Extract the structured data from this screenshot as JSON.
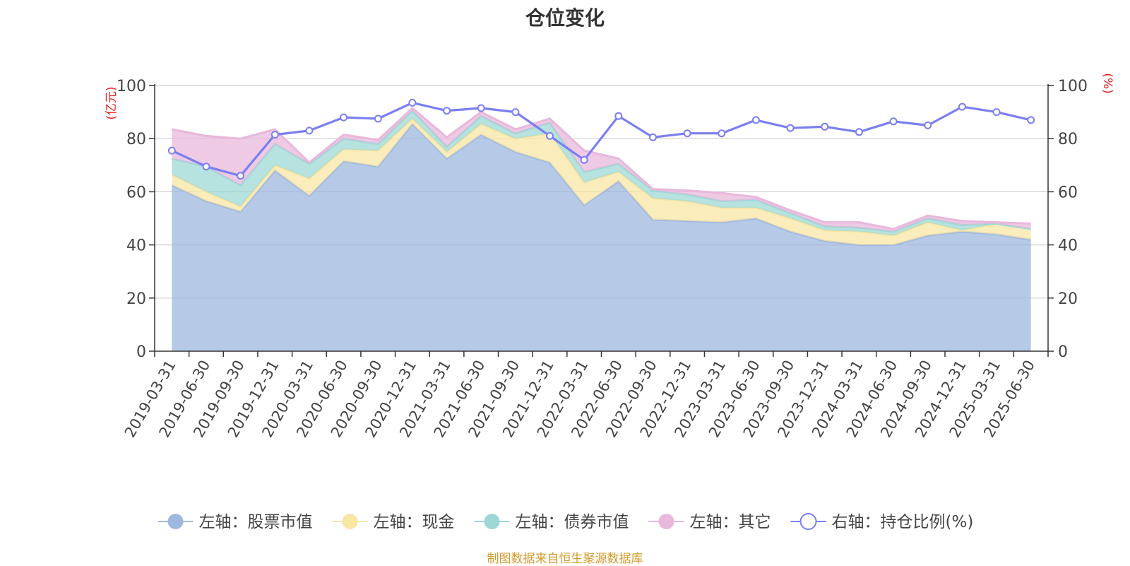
{
  "chart_data": {
    "type": "area",
    "title": "仓位变化",
    "left_axis_unit": "(亿元)",
    "right_axis_unit": "(%)",
    "ylim_left": [
      0,
      100
    ],
    "ylim_right": [
      0,
      100
    ],
    "yticks_left": [
      "0",
      "20",
      "40",
      "60",
      "80",
      "100"
    ],
    "yticks_right": [
      "0",
      "20",
      "40",
      "60",
      "80",
      "100"
    ],
    "grid": true,
    "legend_position": "bottom",
    "categories": [
      "2019-03-31",
      "2019-06-30",
      "2019-09-30",
      "2019-12-31",
      "2020-03-31",
      "2020-06-30",
      "2020-09-30",
      "2020-12-31",
      "2021-03-31",
      "2021-06-30",
      "2021-09-30",
      "2021-12-31",
      "2022-03-31",
      "2022-06-30",
      "2022-09-30",
      "2022-12-31",
      "2023-03-31",
      "2023-06-30",
      "2023-09-30",
      "2023-12-31",
      "2024-03-31",
      "2024-06-30",
      "2024-09-30",
      "2024-12-31",
      "2025-03-31",
      "2025-06-30"
    ],
    "stacked_series": [
      {
        "name": "左轴：股票市值",
        "color": "#9eb8e0",
        "values": [
          62.5,
          56.5,
          52.5,
          68,
          58.5,
          71.5,
          69.5,
          85.5,
          72.5,
          81.5,
          75,
          71,
          55,
          64,
          49.5,
          49,
          48.5,
          50,
          45,
          41.5,
          40,
          40,
          43.5,
          45,
          44,
          42
        ]
      },
      {
        "name": "左轴：现金",
        "color": "#f9e5a4",
        "values": [
          4,
          3.5,
          2,
          2,
          6.5,
          4.5,
          6,
          2,
          2.5,
          4,
          5,
          11,
          8.5,
          3.5,
          8,
          7.5,
          5.5,
          4,
          5,
          4,
          5,
          3.5,
          5,
          0.5,
          4,
          4
        ]
      },
      {
        "name": "左轴：债券市值",
        "color": "#9dd8d6",
        "values": [
          6,
          9.5,
          8,
          8,
          5.5,
          4,
          2.5,
          3,
          2,
          3,
          2,
          4,
          4,
          3,
          3,
          2.5,
          2.5,
          3,
          2,
          1.5,
          1.5,
          1.5,
          1.5,
          2,
          0,
          0
        ]
      },
      {
        "name": "左轴：其它",
        "color": "#e8b8dc",
        "values": [
          11,
          11.5,
          17.5,
          5.5,
          0.5,
          1.5,
          1.5,
          1,
          3.5,
          1.5,
          1.5,
          1.5,
          8,
          2,
          0.5,
          1.5,
          3,
          1,
          1,
          1.5,
          2,
          1,
          1,
          1.5,
          0.5,
          2
        ]
      }
    ],
    "line_series": {
      "name": "右轴：持仓比例(%)",
      "color": "#7b7ff0",
      "values": [
        75.5,
        69.5,
        66,
        81.5,
        83,
        88,
        87.5,
        93.5,
        90.5,
        91.5,
        90,
        81,
        72,
        88.5,
        80.5,
        82,
        82,
        87,
        84,
        84.5,
        82.5,
        86.5,
        85,
        92,
        90,
        87
      ]
    }
  },
  "source": {
    "text": "制图数据来自恒生聚源数据库",
    "color": "#d19a2b"
  }
}
